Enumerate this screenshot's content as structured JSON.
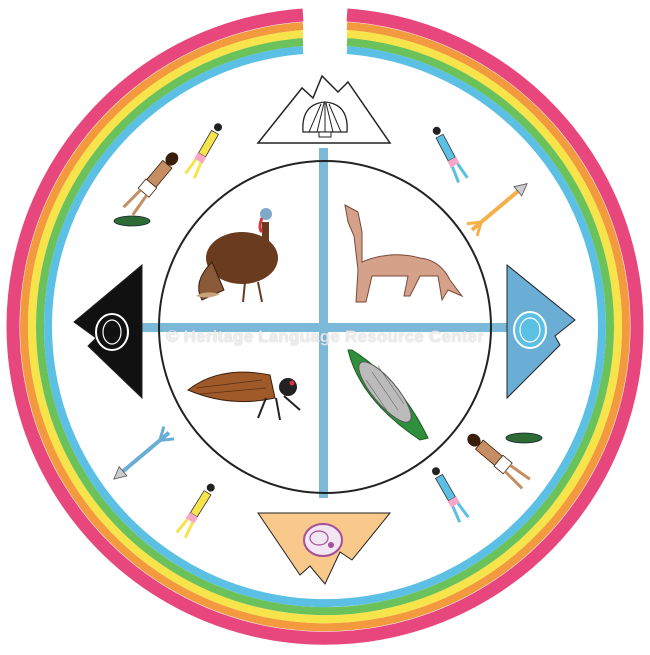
{
  "watermark": "© Heritage Language Resource Center",
  "colors": {
    "rainbow": [
      "#e8477e",
      "#f39a3e",
      "#f7e34a",
      "#6bc15a",
      "#5bc0e3"
    ],
    "cross": "#7cb8d8",
    "east_mountain": "#ffffff",
    "west_mountain": "#111111",
    "south_mountain": "#f8c98a",
    "north_mountain": "#6aaed6"
  },
  "icons": {
    "north": "shell-icon",
    "west": "jet-stone-icon",
    "east": "turquoise-icon",
    "south": "abalone-icon",
    "nw": "turkey-icon",
    "ne": "coyote-icon",
    "sw": "cicada-icon",
    "se": "corn-icon"
  }
}
